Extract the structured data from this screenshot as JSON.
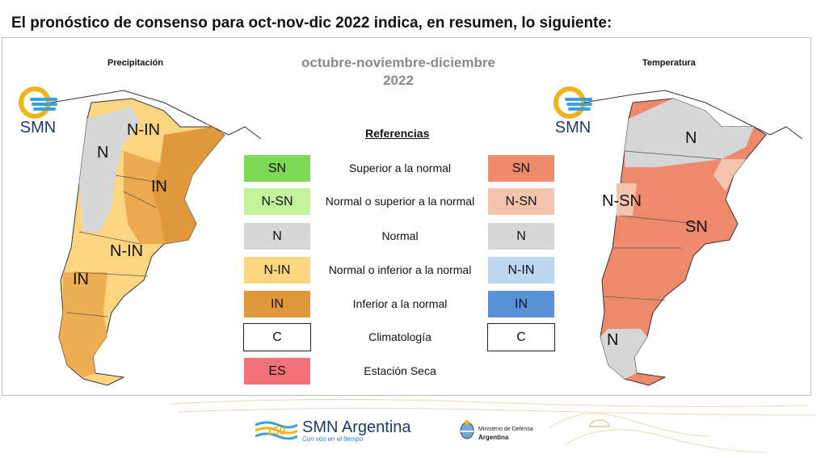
{
  "headline": "El pronóstico de consenso para  oct-nov-dic 2022 indica, en resumen, lo siguiente:",
  "period": {
    "line1": "octubre-noviembre-diciembre",
    "line2": "2022"
  },
  "precip_title": "Precipitación",
  "temp_title": "Temperatura",
  "logo_text": "SMN",
  "refs_title": "Referencias",
  "references": [
    {
      "precip_code": "SN",
      "desc": "Superior a la normal",
      "temp_code": "SN",
      "precip_color": "#7ed957",
      "temp_color": "#ec8a6b"
    },
    {
      "precip_code": "N-SN",
      "desc": "Normal o superior a la normal",
      "temp_code": "N-SN",
      "precip_color": "#c2f29b",
      "temp_color": "#f4c3ae"
    },
    {
      "precip_code": "N",
      "desc": "Normal",
      "temp_code": "N",
      "precip_color": "#d6d6d6",
      "temp_color": "#d6d6d6"
    },
    {
      "precip_code": "N-IN",
      "desc": "Normal o inferior a la normal",
      "temp_code": "N-IN",
      "precip_color": "#fbd57f",
      "temp_color": "#bcd7ef"
    },
    {
      "precip_code": "IN",
      "desc": "Inferior a la normal",
      "temp_code": "IN",
      "precip_color": "#e0983a",
      "temp_color": "#5a91d6"
    },
    {
      "precip_code": "C",
      "desc": "Climatología",
      "temp_code": "C",
      "precip_color": "#ffffff",
      "temp_color": "#ffffff"
    },
    {
      "precip_code": "ES",
      "desc": "Estación Seca",
      "precip_color": "#f2717a"
    }
  ],
  "precip_map_labels": [
    "N-IN",
    "N",
    "IN",
    "N-IN",
    "IN"
  ],
  "temp_map_labels": [
    "N",
    "N-SN",
    "SN",
    "N"
  ],
  "footer": {
    "brand": "SMN Argentina",
    "tagline": "Con vos en el tiempo",
    "ministry_line1": "Ministerio de Defensa",
    "ministry_line2": "Argentina",
    "logo_number": "150"
  }
}
